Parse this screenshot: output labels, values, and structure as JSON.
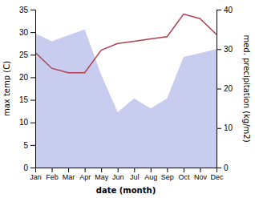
{
  "chart_data": {
    "type": "line",
    "xlabel": "date (month)",
    "ylabel": "max temp (C)",
    "y2label": "med. precipitation (kg/m2)",
    "categories": [
      "Jan",
      "Feb",
      "Mar",
      "Apr",
      "May",
      "Jun",
      "Jul",
      "Aug",
      "Sep",
      "Oct",
      "Nov",
      "Dec"
    ],
    "ylim": [
      0,
      35
    ],
    "yticks": [
      0,
      5,
      10,
      15,
      20,
      25,
      30,
      35
    ],
    "y2lim": [
      0,
      40
    ],
    "y2ticks": [
      0,
      10,
      20,
      30,
      40
    ],
    "grid": false,
    "series": [
      {
        "type": "area",
        "axis": "y2",
        "color": "#c8ccee",
        "values": [
          34.0,
          32.0,
          33.5,
          35.0,
          23.5,
          14.0,
          17.5,
          15.0,
          17.5,
          28.0,
          29.0,
          30.0
        ]
      },
      {
        "type": "line",
        "color": "#b04050",
        "values": [
          25.5,
          22.0,
          21.0,
          21.0,
          26.0,
          27.5,
          28.0,
          28.5,
          29.0,
          34.0,
          33.0,
          29.5
        ]
      }
    ]
  }
}
